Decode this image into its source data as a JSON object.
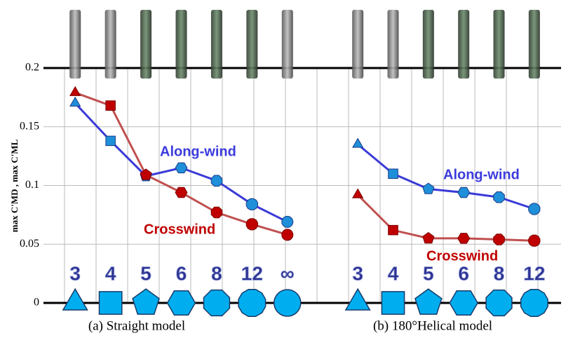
{
  "chart_data": [
    {
      "type": "line",
      "caption": "(a) Straight model",
      "y_label": "max C'MD , max C'ML",
      "categories": [
        "3",
        "4",
        "5",
        "6",
        "8",
        "12",
        "∞"
      ],
      "ylim": [
        0,
        0.2
      ],
      "yticks": [
        0,
        0.05,
        0.1,
        0.15,
        0.2
      ],
      "grid": true,
      "series": [
        {
          "name": "Along-wind",
          "color": "#3a3ad8",
          "marker_color": "#1e8fd8",
          "values": [
            0.17,
            0.138,
            0.108,
            0.115,
            0.104,
            0.084,
            0.069
          ]
        },
        {
          "name": "Crosswind",
          "color": "#c05050",
          "marker_color": "#c00000",
          "values": [
            0.179,
            0.168,
            0.109,
            0.094,
            0.077,
            0.067,
            0.058
          ]
        }
      ]
    },
    {
      "type": "line",
      "caption": "(b) 180°Helical model",
      "categories": [
        "3",
        "4",
        "5",
        "6",
        "8",
        "12"
      ],
      "ylim": [
        0,
        0.2
      ],
      "yticks": [
        0,
        0.05,
        0.1,
        0.15,
        0.2
      ],
      "grid": true,
      "series": [
        {
          "name": "Along-wind",
          "color": "#3a3ad8",
          "marker_color": "#1e8fd8",
          "values": [
            0.135,
            0.11,
            0.097,
            0.094,
            0.09,
            0.08
          ]
        },
        {
          "name": "Crosswind",
          "color": "#c05050",
          "marker_color": "#c00000",
          "values": [
            0.092,
            0.062,
            0.055,
            0.055,
            0.054,
            0.053
          ]
        }
      ]
    }
  ]
}
